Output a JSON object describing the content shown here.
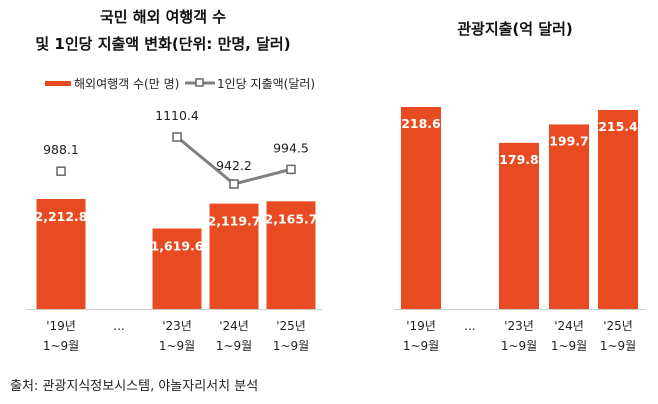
{
  "chart_data": [
    {
      "type": "bar+line",
      "title_lines": [
        "국민 해외 여행객 수",
        "및 1인당 지출액 변화(단위: 만명, 달러)"
      ],
      "categories": [
        [
          "'19년",
          "1~9월"
        ],
        [
          "..."
        ],
        [
          "'23년",
          "1~9월"
        ],
        [
          "'24년",
          "1~9월"
        ],
        [
          "'25년",
          "1~9월"
        ]
      ],
      "legend": {
        "position": "top"
      },
      "series": [
        {
          "name": "해외여행객 수(만 명)",
          "type": "bar",
          "color": "#E84B22",
          "values": [
            2212.8,
            null,
            1619.6,
            2119.7,
            2165.7
          ],
          "labels": [
            "2,212.8",
            "",
            "1,619.6",
            "2,119.7",
            "2,165.7"
          ]
        },
        {
          "name": "1인당 지출액(달러)",
          "type": "line",
          "color": "#7f7f7f",
          "values": [
            988.1,
            null,
            1110.4,
            942.2,
            994.5
          ],
          "labels": [
            "988.1",
            "",
            "1110.4",
            "942.2",
            "994.5"
          ]
        }
      ],
      "grid": false
    },
    {
      "type": "bar",
      "title": "관광지출(억 달러)",
      "categories": [
        [
          "'19년",
          "1~9월"
        ],
        [
          "..."
        ],
        [
          "'23년",
          "1~9월"
        ],
        [
          "'24년",
          "1~9월"
        ],
        [
          "'25년",
          "1~9월"
        ]
      ],
      "values": [
        218.6,
        null,
        179.8,
        199.7,
        215.4
      ],
      "labels": [
        "218.6",
        "",
        "179.8",
        "199.7",
        "215.4"
      ],
      "color": "#E84B22",
      "grid": false
    }
  ],
  "source": "출처: 관광지식정보시스템, 야놀자리서치 분석"
}
